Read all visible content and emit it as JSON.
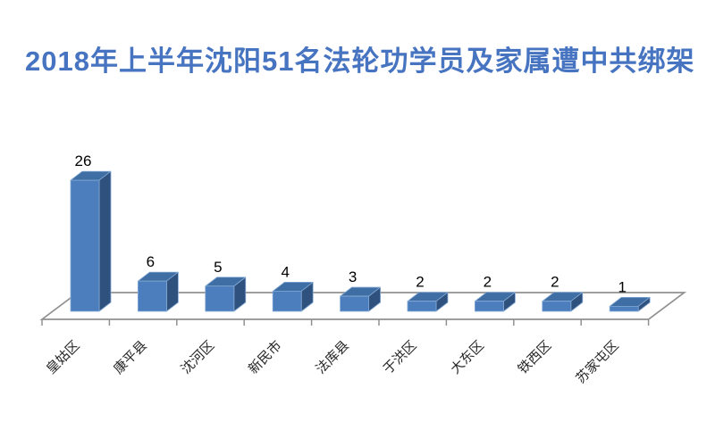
{
  "title": {
    "text": "2018年上半年沈阳51名法轮功学员及家属遭中共绑架",
    "color": "#4674C1"
  },
  "chart_data": {
    "type": "bar",
    "projection": "3d-oblique",
    "title": "2018年上半年沈阳51名法轮功学员及家属遭中共绑架",
    "categories": [
      "皇姑区",
      "康平县",
      "沈河区",
      "新民市",
      "法库县",
      "于洪区",
      "大东区",
      "铁西区",
      "苏家屯区"
    ],
    "values": [
      26,
      6,
      5,
      4,
      3,
      2,
      2,
      2,
      1
    ],
    "data_labels_visible": true,
    "value_axis_visible": false,
    "legend": "none",
    "xlabel": "",
    "ylabel": "",
    "category_label_rotation_deg": -45,
    "colors": {
      "bar_front": "#4C7EBD",
      "bar_top": "#3F6EA5",
      "bar_side": "#2E527D",
      "bar_edge": "#84A9D4",
      "axis_line": "#909090",
      "value_label": "#000000",
      "category_label": "#262626",
      "background": "#ffffff"
    }
  }
}
